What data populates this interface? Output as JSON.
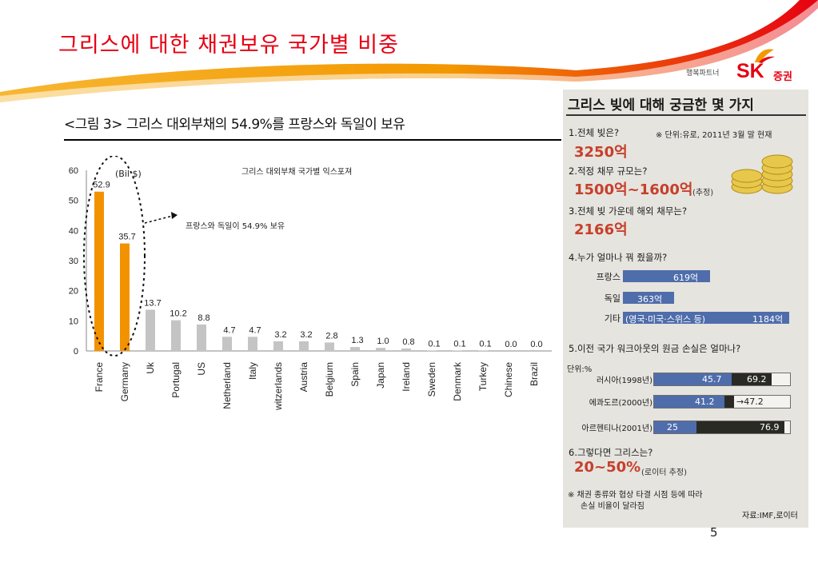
{
  "slide": {
    "title": "그리스에 대한 채권보유 국가별 비중",
    "page_number": "5",
    "colors": {
      "title_red": "#e60012",
      "swoosh_orange": "#f39800",
      "swoosh_red": "#e60012"
    }
  },
  "logo": {
    "tagline": "행복파트너",
    "brand": "SK",
    "suffix": "증권"
  },
  "figure": {
    "caption": "<그림 3> 그리스 대외부채의 54.9%를 프랑스와 독일이 보유"
  },
  "chart_data": {
    "type": "bar",
    "title": "그리스 대외부채 국가별 익스포져",
    "unit_label": "(Bil $)",
    "annotation": "프랑스와 독일이 54.9% 보유",
    "ylim": [
      0,
      60
    ],
    "yticks": [
      0,
      10,
      20,
      30,
      40,
      50,
      60
    ],
    "categories": [
      "France",
      "Germany",
      "Uk",
      "Portugal",
      "US",
      "Netherland",
      "Italy",
      "witzerlands",
      "Austria",
      "Belgium",
      "Spain",
      "Japan",
      "Ireland",
      "Sweden",
      "Denmark",
      "Turkey",
      "Chinese",
      "Brazil"
    ],
    "values": [
      52.9,
      35.7,
      13.7,
      10.2,
      8.8,
      4.7,
      4.7,
      3.2,
      3.2,
      2.8,
      1.3,
      1.0,
      0.8,
      0.1,
      0.1,
      0.1,
      0.0,
      0.0
    ],
    "value_labels": [
      "52.9",
      "35.7",
      "13.7",
      "10.2",
      "8.8",
      "4.7",
      "4.7",
      "3.2",
      "3.2",
      "2.8",
      "1.3",
      "1.0",
      "0.8",
      "0.1",
      "0.1",
      "0.1",
      "0.0",
      "0.0"
    ],
    "colors": {
      "highlight": "#f39200",
      "other": "#c4c4c4"
    },
    "highlighted_count": 2
  },
  "panel": {
    "title": "그리스 빚에 대해 궁금한 몇 가지",
    "q1": {
      "label": "1.전체 빚은?",
      "note": "※ 단위:유로, 2011년 3월 말 현재",
      "answer": "3250억"
    },
    "q2": {
      "label": "2.적정 채무 규모는?",
      "answer": "1500억~1600억",
      "note": "(추정)"
    },
    "q3": {
      "label": "3.전체 빚 가운데 해외 채무는?",
      "answer": "2166억"
    },
    "q4": {
      "label": "4.누가 얼마나 꿔 줬을까?",
      "bars": [
        {
          "name": "프랑스",
          "text": "619억",
          "value": 619
        },
        {
          "name": "독일",
          "text": "363억",
          "value": 363
        },
        {
          "name": "기타",
          "inner_note": "(영국·미국·스위스 등)",
          "text": "1184억",
          "value": 1184
        }
      ]
    },
    "q5": {
      "label": "5.이전 국가 워크아웃의 원금 손실은 얼마나?",
      "unit": "단위:%",
      "bars": [
        {
          "name": "러시아(1998년)",
          "a": 45.7,
          "b": 69.2,
          "a_text": "45.7",
          "b_text": "69.2"
        },
        {
          "name": "에콰도르(2000년)",
          "a": 41.2,
          "b": 47.2,
          "a_text": "41.2",
          "b_text": "47.2"
        },
        {
          "name": "아르헨티나(2001년)",
          "a": 25,
          "b": 76.9,
          "a_text": "25",
          "b_text": "76.9"
        }
      ]
    },
    "q6": {
      "label": "6.그렇다면 그리스는?",
      "answer": "20~50%",
      "note": "(로이터 추정)"
    },
    "footnote1": "※ 채권 종류와 협상 타결 시점 등에 따라",
    "footnote2": "손실 비율이 달라짐",
    "source": "자료:IMF,로이터"
  }
}
